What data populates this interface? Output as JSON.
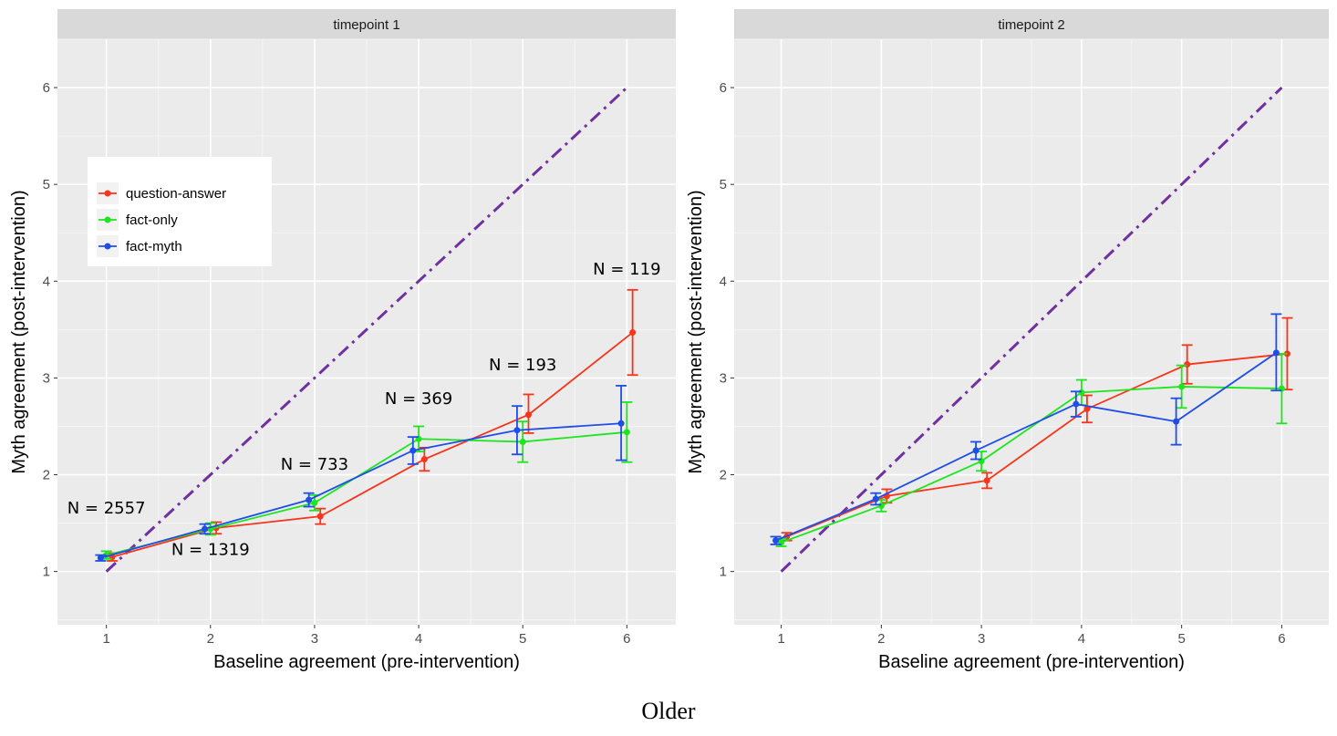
{
  "caption": "Older",
  "chart_data": [
    {
      "type": "line",
      "panel_title": "timepoint 1",
      "xlabel": "Baseline agreement (pre-intervention)",
      "ylabel": "Myth agreement (post-intervention)",
      "x_ticks": [
        1,
        2,
        3,
        4,
        5,
        6
      ],
      "y_ticks": [
        1,
        2,
        3,
        4,
        5,
        6
      ],
      "xlim": [
        0.53,
        6.47
      ],
      "ylim": [
        0.45,
        6.5
      ],
      "grid": true,
      "legend": {
        "placement": "top-left",
        "entries": [
          "question-answer",
          "fact-only",
          "fact-myth"
        ]
      },
      "reference_line": {
        "x": [
          1,
          6
        ],
        "y": [
          1,
          6
        ],
        "color": "#7030a0",
        "style": "dash-dot"
      },
      "series": [
        {
          "name": "question-answer",
          "color": "#f8341a",
          "x": [
            1,
            2,
            3,
            4,
            5,
            6
          ],
          "y": [
            1.15,
            1.45,
            1.57,
            2.16,
            2.62,
            3.47
          ],
          "err_low": [
            1.11,
            1.39,
            1.49,
            2.04,
            2.43,
            3.03
          ],
          "err_high": [
            1.19,
            1.51,
            1.65,
            2.28,
            2.83,
            3.91
          ]
        },
        {
          "name": "fact-only",
          "color": "#1ee61e",
          "x": [
            1,
            2,
            3,
            4,
            5,
            6
          ],
          "y": [
            1.17,
            1.44,
            1.71,
            2.37,
            2.34,
            2.44
          ],
          "err_low": [
            1.13,
            1.38,
            1.63,
            2.24,
            2.13,
            2.13
          ],
          "err_high": [
            1.21,
            1.5,
            1.79,
            2.5,
            2.55,
            2.75
          ]
        },
        {
          "name": "fact-myth",
          "color": "#1f4de8",
          "x": [
            1,
            2,
            3,
            4,
            5,
            6
          ],
          "y": [
            1.14,
            1.44,
            1.74,
            2.25,
            2.46,
            2.53
          ],
          "err_low": [
            1.11,
            1.39,
            1.67,
            2.11,
            2.21,
            2.15
          ],
          "err_high": [
            1.17,
            1.49,
            1.81,
            2.39,
            2.71,
            2.92
          ]
        }
      ],
      "annotations": [
        {
          "text": "N = 2557",
          "x": 1,
          "y": 1.6
        },
        {
          "text": "N = 1319",
          "x": 2,
          "y": 1.17
        },
        {
          "text": "N = 733",
          "x": 3,
          "y": 2.05
        },
        {
          "text": "N = 369",
          "x": 4,
          "y": 2.73
        },
        {
          "text": "N = 193",
          "x": 5,
          "y": 3.08
        },
        {
          "text": "N = 119",
          "x": 6,
          "y": 4.07
        }
      ]
    },
    {
      "type": "line",
      "panel_title": "timepoint 2",
      "xlabel": "Baseline agreement (pre-intervention)",
      "ylabel": "Myth agreement (post-intervention)",
      "x_ticks": [
        1,
        2,
        3,
        4,
        5,
        6
      ],
      "y_ticks": [
        1,
        2,
        3,
        4,
        5,
        6
      ],
      "xlim": [
        0.53,
        6.47
      ],
      "ylim": [
        0.45,
        6.5
      ],
      "grid": true,
      "reference_line": {
        "x": [
          1,
          6
        ],
        "y": [
          1,
          6
        ],
        "color": "#7030a0",
        "style": "dash-dot"
      },
      "series": [
        {
          "name": "question-answer",
          "color": "#f8341a",
          "x": [
            1,
            2,
            3,
            4,
            5,
            6
          ],
          "y": [
            1.36,
            1.78,
            1.94,
            2.68,
            3.14,
            3.25
          ],
          "err_low": [
            1.32,
            1.71,
            1.86,
            2.54,
            2.94,
            2.88
          ],
          "err_high": [
            1.4,
            1.85,
            2.02,
            2.82,
            3.34,
            3.62
          ]
        },
        {
          "name": "fact-only",
          "color": "#1ee61e",
          "x": [
            1,
            2,
            3,
            4,
            5,
            6
          ],
          "y": [
            1.3,
            1.68,
            2.14,
            2.85,
            2.91,
            2.89
          ],
          "err_low": [
            1.26,
            1.62,
            2.04,
            2.72,
            2.69,
            2.53
          ],
          "err_high": [
            1.34,
            1.74,
            2.24,
            2.98,
            3.13,
            3.25
          ]
        },
        {
          "name": "fact-myth",
          "color": "#1f4de8",
          "x": [
            1,
            2,
            3,
            4,
            5,
            6
          ],
          "y": [
            1.32,
            1.75,
            2.25,
            2.73,
            2.55,
            3.26
          ],
          "err_low": [
            1.28,
            1.69,
            2.16,
            2.6,
            2.31,
            2.87
          ],
          "err_high": [
            1.36,
            1.81,
            2.34,
            2.86,
            2.79,
            3.66
          ]
        }
      ]
    }
  ]
}
